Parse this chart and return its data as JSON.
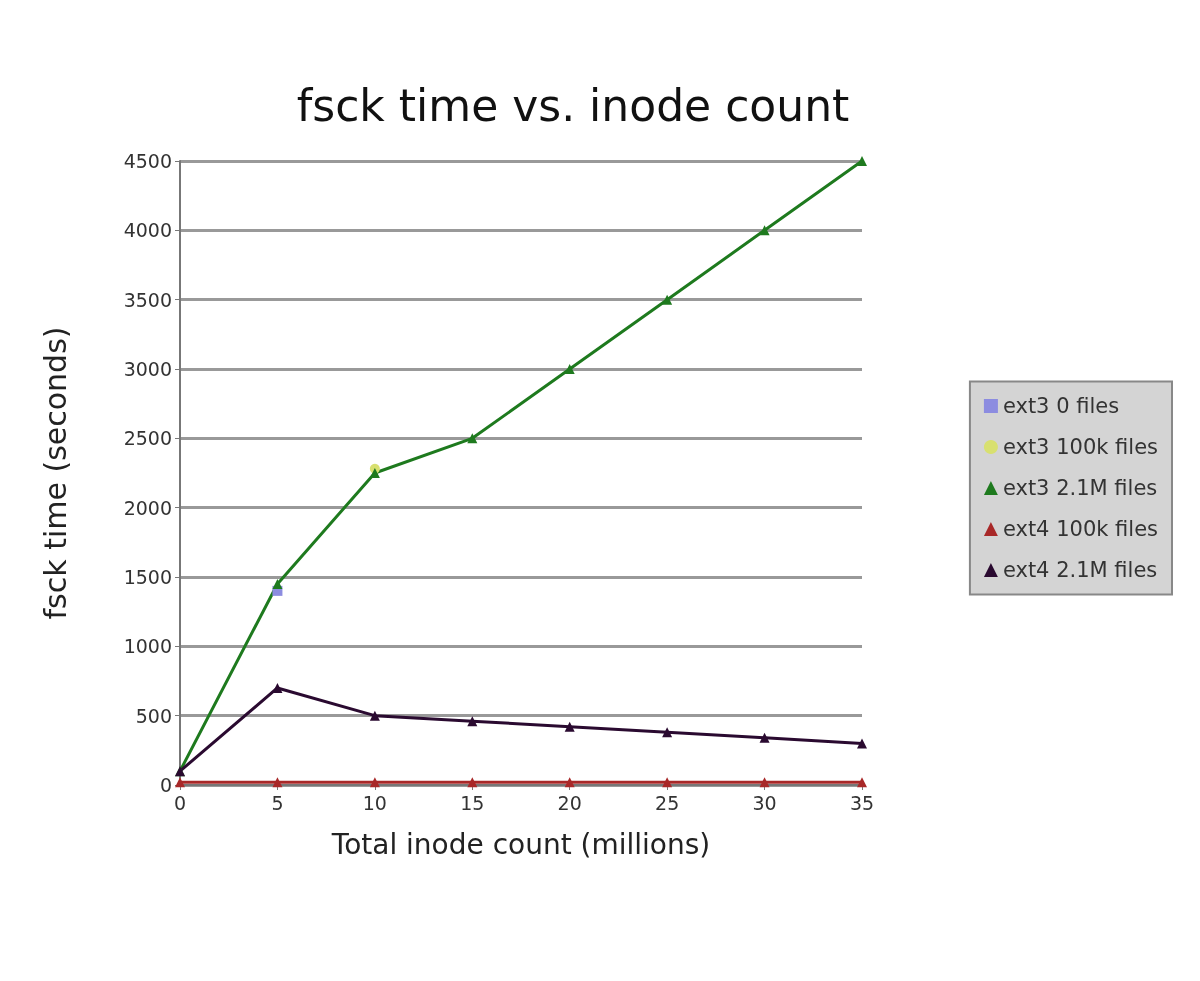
{
  "chart_data": {
    "type": "line",
    "title": "fsck time vs. inode count",
    "xlabel": "Total inode count (millions)",
    "ylabel": "fsck time (seconds)",
    "x": [
      0,
      5,
      10,
      15,
      20,
      25,
      30,
      35
    ],
    "series": [
      {
        "name": "ext3 0 files",
        "color": "#8c8ce0",
        "marker": "square",
        "values": [
          null,
          1400,
          null,
          null,
          null,
          null,
          null,
          null
        ]
      },
      {
        "name": "ext3 100k files",
        "color": "#d8e070",
        "marker": "circle",
        "values": [
          null,
          null,
          2280,
          null,
          null,
          null,
          null,
          null
        ]
      },
      {
        "name": "ext3 2.1M files",
        "color": "#1e7a1e",
        "marker": "triangle",
        "values": [
          100,
          1450,
          2250,
          2500,
          3000,
          3500,
          4000,
          4500
        ]
      },
      {
        "name": "ext4 100k files",
        "color": "#a82828",
        "marker": "triangle",
        "values": [
          20,
          20,
          20,
          20,
          20,
          20,
          20,
          20
        ]
      },
      {
        "name": "ext4 2.1M files",
        "color": "#2a0a30",
        "marker": "triangle",
        "values": [
          100,
          700,
          500,
          460,
          420,
          380,
          340,
          300
        ]
      }
    ],
    "xlim": [
      0,
      35
    ],
    "xticks": [
      0,
      5,
      10,
      15,
      20,
      25,
      30,
      35
    ],
    "ylim": [
      0,
      4500
    ],
    "yticks": [
      0,
      500,
      1000,
      1500,
      2000,
      2500,
      3000,
      3500,
      4000,
      4500
    ],
    "grid": "y",
    "legend": "right",
    "line_style": "solid"
  }
}
